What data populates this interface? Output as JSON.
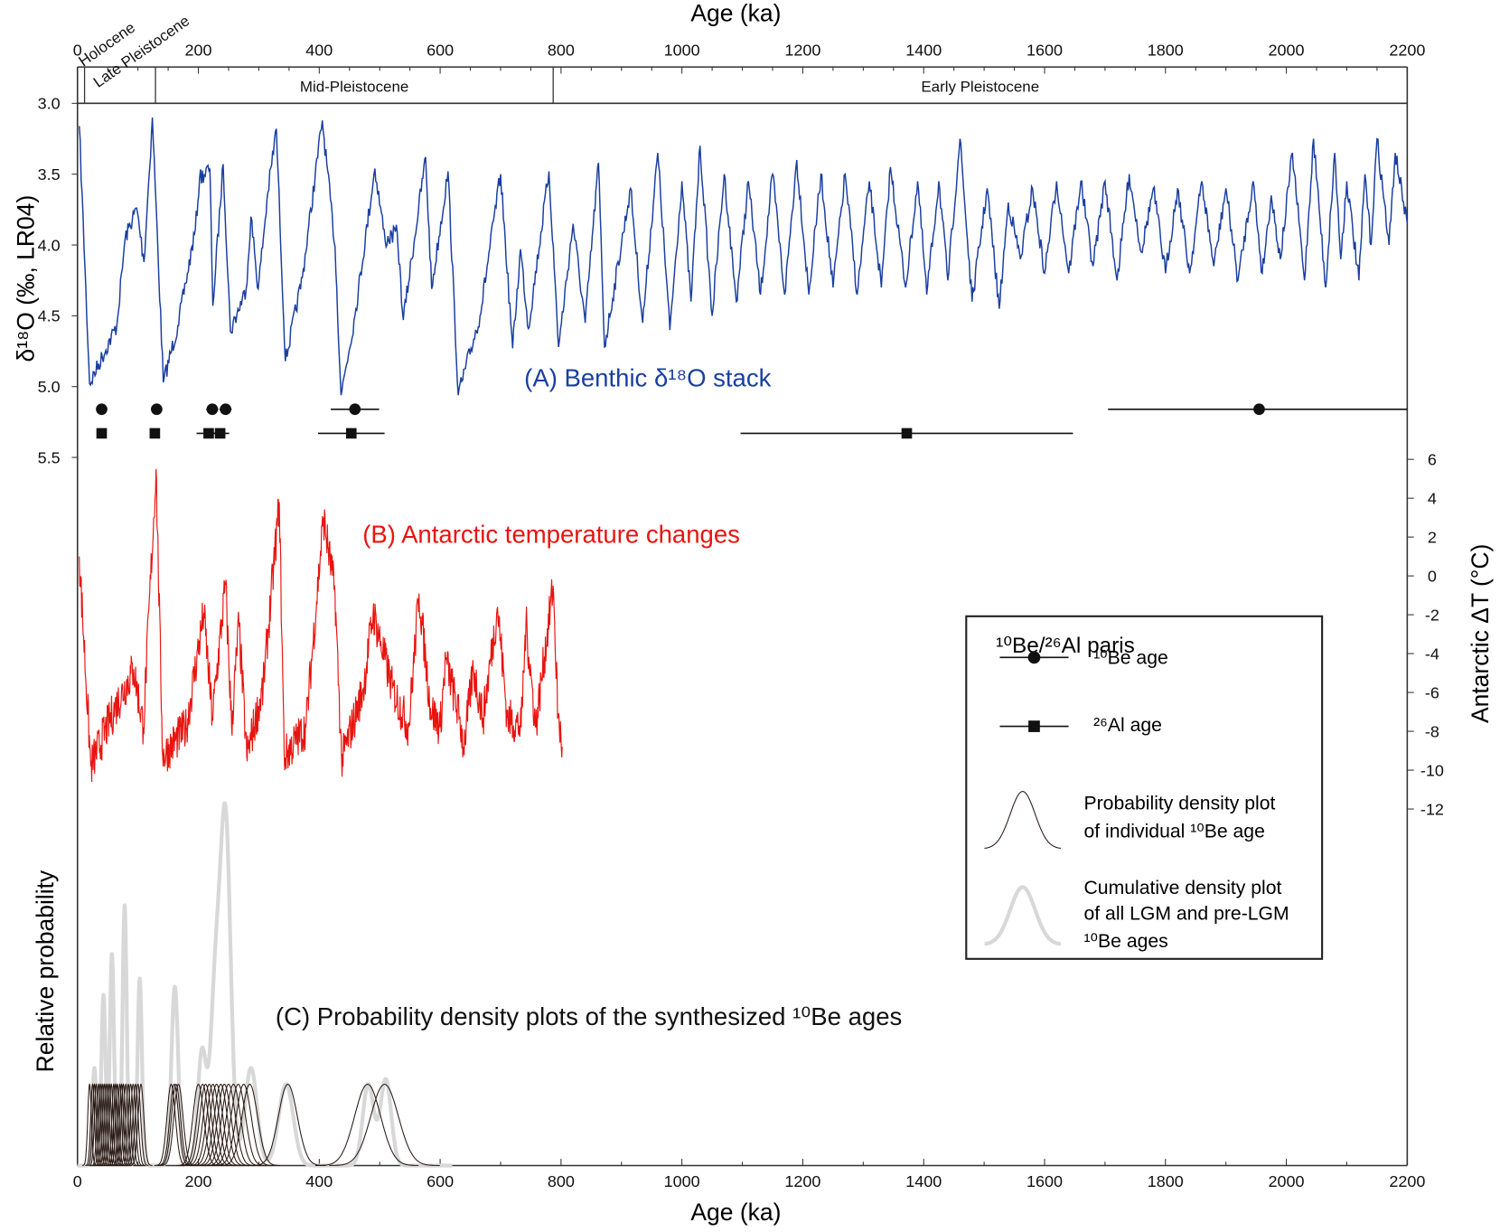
{
  "chart_data": [
    {
      "type": "line",
      "label": "(A) Benthic δ¹⁸O stack",
      "ylabel": "δ¹⁸O (‰, LR04)",
      "ylim": [
        3.0,
        5.5
      ],
      "y_inverted": true,
      "yticks": [
        "3.0",
        "3.5",
        "4.0",
        "4.5",
        "5.0",
        "5.5"
      ],
      "color": "#1a3fa0",
      "x": [
        3,
        20,
        65,
        79,
        98,
        110,
        124,
        142,
        166,
        179,
        195,
        202,
        219,
        224,
        241,
        253,
        279,
        287,
        299,
        315,
        329,
        344,
        372,
        405,
        426,
        436,
        459,
        492,
        509,
        529,
        539,
        576,
        586,
        613,
        630,
        666,
        700,
        720,
        733,
        746,
        780,
        796,
        820,
        840,
        862,
        872,
        915,
        935,
        960,
        980,
        1000,
        1015,
        1030,
        1050,
        1070,
        1090,
        1110,
        1130,
        1150,
        1170,
        1190,
        1210,
        1230,
        1250,
        1270,
        1290,
        1310,
        1330,
        1345,
        1370,
        1390,
        1405,
        1425,
        1440,
        1460,
        1480,
        1505,
        1525,
        1540,
        1560,
        1580,
        1600,
        1620,
        1640,
        1660,
        1680,
        1700,
        1720,
        1740,
        1760,
        1780,
        1800,
        1820,
        1840,
        1860,
        1880,
        1900,
        1920,
        1945,
        1960,
        1975,
        1990,
        2010,
        2030,
        2045,
        2065,
        2080,
        2090,
        2100,
        2120,
        2130,
        2140,
        2150,
        2170,
        2180,
        2200
      ],
      "y": [
        3.16,
        4.98,
        4.57,
        3.95,
        3.74,
        4.12,
        3.1,
        4.97,
        4.57,
        4.27,
        3.89,
        3.53,
        3.46,
        4.43,
        3.43,
        4.61,
        4.31,
        3.8,
        4.31,
        3.63,
        3.18,
        4.82,
        4.23,
        3.12,
        4.01,
        5.06,
        4.5,
        3.46,
        3.97,
        3.91,
        4.53,
        3.38,
        4.31,
        3.48,
        5.06,
        4.5,
        3.5,
        4.73,
        4.03,
        4.59,
        3.48,
        4.72,
        3.85,
        4.55,
        3.42,
        4.72,
        3.6,
        4.55,
        3.35,
        4.6,
        3.55,
        4.4,
        3.3,
        4.5,
        3.5,
        4.4,
        3.55,
        4.35,
        3.5,
        4.35,
        3.4,
        4.35,
        3.5,
        4.3,
        3.5,
        4.35,
        3.55,
        4.3,
        3.45,
        4.3,
        3.55,
        4.35,
        3.55,
        4.25,
        3.25,
        4.4,
        3.6,
        4.45,
        3.7,
        4.1,
        3.6,
        4.2,
        3.55,
        4.2,
        3.55,
        4.15,
        3.55,
        4.25,
        3.5,
        4.05,
        3.6,
        4.2,
        3.6,
        4.2,
        3.55,
        4.15,
        3.6,
        4.25,
        3.55,
        4.2,
        3.65,
        4.1,
        3.35,
        4.25,
        3.25,
        4.3,
        3.35,
        4.1,
        3.55,
        4.25,
        3.5,
        4.0,
        3.25,
        4.0,
        3.35,
        3.85
      ]
    },
    {
      "type": "line",
      "label": "(B) Antarctic temperature changes",
      "ylabel": "Antarctic ΔT (°C)",
      "ylim": [
        -12,
        6
      ],
      "yticks": [
        "6",
        "4",
        "2",
        "0",
        "-2",
        "-4",
        "-6",
        "-8",
        "-10",
        "-12"
      ],
      "color": "#e8140f",
      "x": [
        3,
        22,
        62,
        93,
        109,
        130,
        141,
        180,
        209,
        223,
        245,
        255,
        267,
        280,
        307,
        334,
        342,
        378,
        407,
        426,
        437,
        473,
        489,
        521,
        548,
        565,
        584,
        600,
        609,
        632,
        639,
        655,
        671,
        695,
        711,
        734,
        742,
        758,
        787,
        795,
        802
      ],
      "y": [
        1.0,
        -9.8,
        -6.8,
        -4.8,
        -7.8,
        5.5,
        -9.3,
        -7.8,
        -1.9,
        -7.3,
        -0.4,
        -7.8,
        -2.4,
        -9.3,
        -5.8,
        3.8,
        -9.3,
        -7.8,
        3.0,
        -0.9,
        -9.5,
        -5.8,
        -1.9,
        -5.8,
        -7.8,
        -0.9,
        -6.8,
        -7.8,
        -4.3,
        -7.3,
        -8.8,
        -4.8,
        -7.3,
        -1.6,
        -7.3,
        -7.8,
        -2.4,
        -7.8,
        -0.5,
        -7.3,
        -8.8
      ]
    },
    {
      "type": "area",
      "label": "(C) Probability density plots of the synthesized ¹⁰Be ages",
      "ylabel": "Relative probability",
      "individual_be_ages": [
        20,
        25,
        28,
        31,
        35,
        38,
        41,
        44,
        47,
        50,
        53,
        56,
        60,
        63,
        66,
        70,
        73,
        76,
        80,
        84,
        88,
        92,
        96,
        100,
        105,
        155,
        160,
        163,
        167,
        200,
        207,
        212,
        218,
        224,
        230,
        237,
        243,
        250,
        258,
        266,
        275,
        285,
        348,
        480,
        508
      ],
      "individual_color": "#2a1a14",
      "cumulative_peaks": {
        "age": [
          28,
          43,
          57,
          78,
          103,
          161,
          206,
          228,
          245,
          287,
          345,
          481,
          510
        ],
        "relative_height": [
          1.2,
          2.1,
          2.6,
          3.2,
          2.3,
          2.2,
          1.4,
          2.1,
          4.2,
          1.2,
          1.0,
          1.0,
          1.06
        ]
      },
      "cumulative_color": "#d8d8d8"
    }
  ],
  "x_axis": {
    "label": "Age (ka)",
    "range": [
      0,
      2200
    ],
    "ticks": [
      "0",
      "200",
      "400",
      "600",
      "800",
      "1000",
      "1200",
      "1400",
      "1600",
      "1800",
      "2000",
      "2200"
    ]
  },
  "epochs": [
    {
      "name": "Holocene",
      "start": 0,
      "end": 11.7
    },
    {
      "name": "Late Pleistocene",
      "start": 11.7,
      "end": 129
    },
    {
      "name": "Mid-Pleistocene",
      "start": 129,
      "end": 787
    },
    {
      "name": "Early Pleistocene",
      "start": 787,
      "end": 2200
    }
  ],
  "be_al_pairs": {
    "be_ages": {
      "age": [
        40,
        131,
        223,
        245,
        459,
        1955
      ],
      "error": [
        0,
        0,
        10,
        10,
        40,
        250
      ]
    },
    "al_ages": {
      "age": [
        40,
        128,
        217,
        236,
        453,
        1372
      ],
      "error": [
        0,
        5,
        20,
        15,
        55,
        275
      ]
    }
  },
  "legend": {
    "title": "¹⁰Be/²⁶Al paris",
    "be_label": "¹⁰Be age",
    "al_label": "²⁶Al age",
    "pdp_label_1": "Probability density plot",
    "pdp_label_2": "of individual ¹⁰Be age",
    "cum_label_1": "Cumulative density plot",
    "cum_label_2": "of all LGM and pre-LGM",
    "cum_label_3": "¹⁰Be ages"
  }
}
